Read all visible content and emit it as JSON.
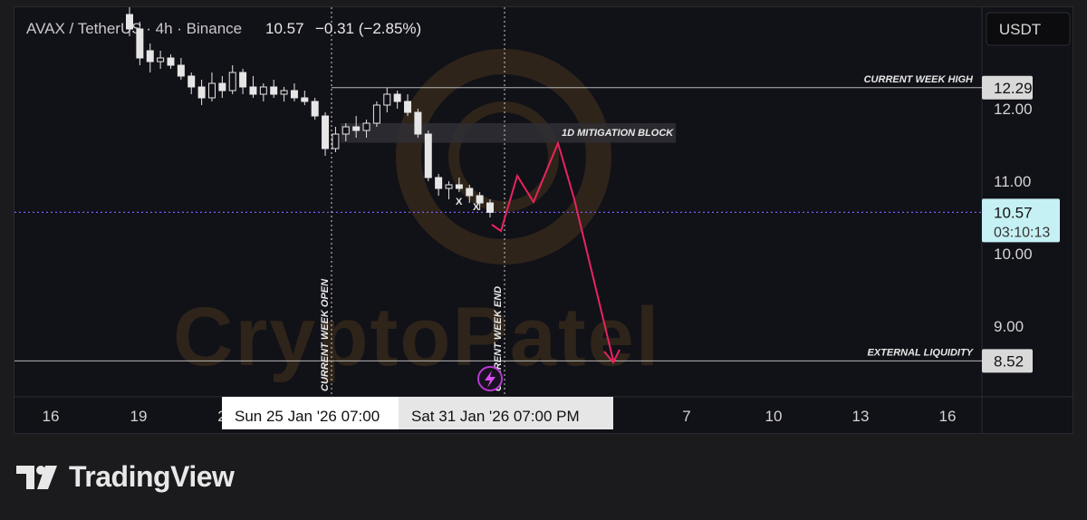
{
  "header": {
    "symbol": "AVAX / TetherUS · 4h · Binance",
    "price": "10.57",
    "change": "−0.31 (−2.85%)"
  },
  "currency_button": "USDT",
  "watermark": "CryptoPatel",
  "footer": {
    "brand": "TradingView"
  },
  "colors": {
    "up": "#e6e6e6",
    "down": "#e6e6e6",
    "projection": "#e8245f",
    "current_price_line": "#7b5cf0",
    "price_badge_bg": "#c6f1f4",
    "level_badge_bg": "#d9d9d9"
  },
  "chart_data": {
    "type": "candlestick",
    "y_ticks": [
      "12.00",
      "11.00",
      "10.00",
      "9.00"
    ],
    "y_tick_values": [
      12,
      11,
      10,
      9
    ],
    "x_ticks": [
      "16",
      "19",
      "2",
      "7",
      "10",
      "13",
      "16"
    ],
    "x_tooltips": [
      "Sun 25 Jan '26   07:00",
      "Sat 31 Jan '26   07:00 PM"
    ],
    "price_badges": [
      {
        "label": "12.29",
        "value": 12.29
      },
      {
        "label": "10.57",
        "sub": "03:10:13",
        "value": 10.57,
        "current": true
      },
      {
        "label": "8.52",
        "value": 8.52
      }
    ],
    "levels": [
      {
        "label": "CURRENT WEEK HIGH",
        "value": 12.29
      },
      {
        "label": "EXTERNAL LIQUIDITY",
        "value": 8.52
      }
    ],
    "vertical_lines": [
      {
        "label": "CURRENT WEEK OPEN"
      },
      {
        "label": "CURRENT WEEK END"
      }
    ],
    "zone": {
      "label": "1D MITIGATION BLOCK",
      "low": 11.53,
      "high": 11.8
    },
    "markers": [
      "X",
      "X"
    ],
    "candles": [
      [
        13.3,
        13.5,
        13.0,
        13.1
      ],
      [
        13.1,
        13.2,
        12.6,
        12.7
      ],
      [
        12.8,
        12.9,
        12.5,
        12.65
      ],
      [
        12.65,
        12.8,
        12.55,
        12.7
      ],
      [
        12.7,
        12.75,
        12.55,
        12.6
      ],
      [
        12.6,
        12.7,
        12.4,
        12.45
      ],
      [
        12.45,
        12.5,
        12.2,
        12.3
      ],
      [
        12.3,
        12.4,
        12.05,
        12.15
      ],
      [
        12.15,
        12.5,
        12.1,
        12.35
      ],
      [
        12.35,
        12.45,
        12.15,
        12.25
      ],
      [
        12.25,
        12.6,
        12.2,
        12.5
      ],
      [
        12.5,
        12.55,
        12.2,
        12.3
      ],
      [
        12.3,
        12.45,
        12.15,
        12.2
      ],
      [
        12.2,
        12.35,
        12.1,
        12.3
      ],
      [
        12.3,
        12.4,
        12.15,
        12.2
      ],
      [
        12.2,
        12.3,
        12.1,
        12.25
      ],
      [
        12.25,
        12.35,
        12.1,
        12.15
      ],
      [
        12.15,
        12.25,
        12.05,
        12.1
      ],
      [
        12.1,
        12.15,
        11.85,
        11.9
      ],
      [
        11.9,
        11.95,
        11.35,
        11.45
      ],
      [
        11.45,
        11.75,
        11.4,
        11.65
      ],
      [
        11.65,
        11.8,
        11.55,
        11.75
      ],
      [
        11.75,
        11.9,
        11.6,
        11.7
      ],
      [
        11.7,
        11.85,
        11.6,
        11.8
      ],
      [
        11.8,
        12.1,
        11.75,
        12.05
      ],
      [
        12.05,
        12.29,
        11.95,
        12.2
      ],
      [
        12.2,
        12.25,
        12.0,
        12.1
      ],
      [
        12.1,
        12.2,
        11.9,
        11.95
      ],
      [
        11.95,
        12.0,
        11.6,
        11.65
      ],
      [
        11.65,
        11.7,
        11.0,
        11.05
      ],
      [
        11.05,
        11.1,
        10.8,
        10.9
      ],
      [
        10.9,
        11.0,
        10.75,
        10.95
      ],
      [
        10.95,
        11.05,
        10.85,
        10.9
      ],
      [
        10.9,
        10.95,
        10.7,
        10.8
      ],
      [
        10.8,
        10.85,
        10.6,
        10.7
      ],
      [
        10.7,
        10.75,
        10.5,
        10.57
      ]
    ]
  }
}
